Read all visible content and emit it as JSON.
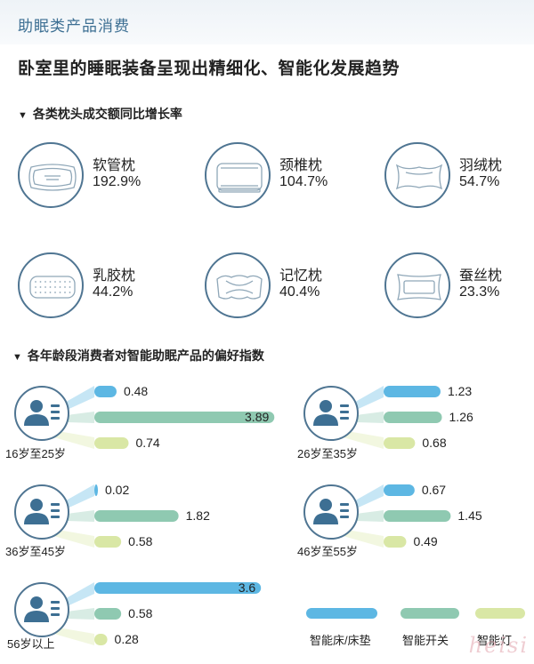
{
  "header": {
    "label": "助眠类产品消费"
  },
  "title": "卧室里的睡眠装备呈现出精细化、智能化发展趋势",
  "colors": {
    "bed": "#5db7e3",
    "switch": "#8fc9b1",
    "lamp": "#d9e7a5",
    "circle_border": "#4f7592",
    "icon": "#3d6f93"
  },
  "chart_data": [
    {
      "type": "table",
      "title": "各类枕头成交额同比增长率",
      "items": [
        {
          "name": "软管枕",
          "value": "192.9%",
          "icon": "tube-pillow-icon"
        },
        {
          "name": "颈椎枕",
          "value": "104.7%",
          "icon": "cervical-pillow-icon"
        },
        {
          "name": "羽绒枕",
          "value": "54.7%",
          "icon": "down-pillow-icon"
        },
        {
          "name": "乳胶枕",
          "value": "44.2%",
          "icon": "latex-pillow-icon"
        },
        {
          "name": "记忆枕",
          "value": "40.4%",
          "icon": "memory-pillow-icon"
        },
        {
          "name": "蚕丝枕",
          "value": "23.3%",
          "icon": "silk-pillow-icon"
        }
      ]
    },
    {
      "type": "bar",
      "title": "各年龄段消费者对智能助眠产品的偏好指数",
      "legend": [
        "智能床/床垫",
        "智能开关",
        "智能灯"
      ],
      "groups": [
        {
          "age": "16岁至25岁",
          "values": [
            0.48,
            3.89,
            0.74
          ]
        },
        {
          "age": "26岁至35岁",
          "values": [
            1.23,
            1.26,
            0.68
          ]
        },
        {
          "age": "36岁至45岁",
          "values": [
            0.02,
            1.82,
            0.58
          ]
        },
        {
          "age": "46岁至55岁",
          "values": [
            0.67,
            1.45,
            0.49
          ]
        },
        {
          "age": "56岁以上",
          "values": [
            3.6,
            0.58,
            0.28
          ]
        }
      ]
    }
  ],
  "watermark": "heisi"
}
